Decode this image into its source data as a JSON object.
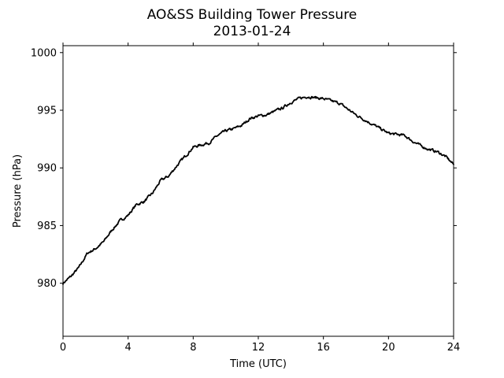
{
  "chart_data": {
    "type": "line",
    "title": "AO&SS Building Tower Pressure",
    "subtitle": "2013-01-24",
    "xlabel": "Time (UTC)",
    "ylabel": "Pressure (hPa)",
    "xlim": [
      0,
      24
    ],
    "ylim": [
      975.4,
      1000.6
    ],
    "x_ticks": [
      0,
      4,
      8,
      12,
      16,
      20,
      24
    ],
    "y_ticks": [
      980,
      985,
      990,
      995,
      1000
    ],
    "grid": false,
    "line_color": "#000000",
    "series": [
      {
        "x": [
          0,
          0.5,
          1,
          1.5,
          2,
          2.5,
          3,
          3.5,
          4,
          4.5,
          5,
          5.5,
          6,
          6.5,
          7,
          7.5,
          8,
          8.5,
          9,
          9.5,
          10,
          10.5,
          11,
          11.5,
          12,
          12.5,
          13,
          13.5,
          14,
          14.5,
          15,
          15.5,
          16,
          16.5,
          17,
          17.5,
          18,
          18.5,
          19,
          19.5,
          20,
          20.5,
          21,
          21.5,
          22,
          22.5,
          23,
          23.5,
          24
        ],
        "values": [
          980.0,
          980.6,
          981.4,
          982.6,
          983.0,
          983.6,
          984.6,
          985.4,
          985.9,
          986.8,
          987.1,
          987.8,
          988.9,
          989.3,
          990.2,
          991.0,
          991.8,
          992.0,
          992.2,
          992.8,
          993.2,
          993.4,
          993.7,
          994.3,
          994.5,
          994.6,
          994.9,
          995.2,
          995.7,
          996.0,
          996.2,
          996.1,
          996.0,
          995.8,
          995.6,
          995.1,
          994.6,
          994.2,
          993.8,
          993.4,
          993.0,
          992.9,
          992.8,
          992.3,
          991.9,
          991.6,
          991.4,
          991.0,
          990.3
        ]
      }
    ]
  }
}
